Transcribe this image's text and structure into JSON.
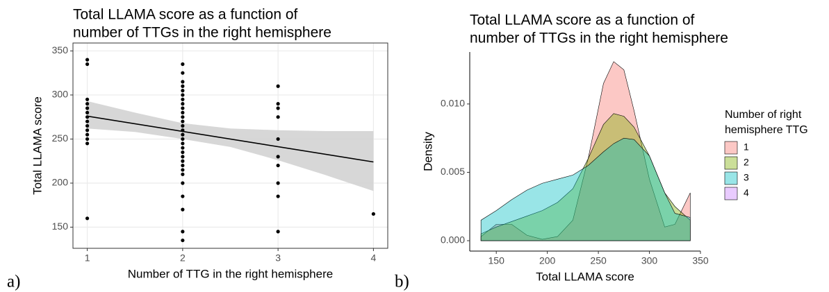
{
  "chart_data": [
    {
      "type": "scatter",
      "title": [
        "Total LLAMA score as a function of",
        "number of TTGs in the right hemisphere"
      ],
      "xlabel": "Number of TTG in the right hemisphere",
      "ylabel": "Total LLAMA score",
      "caption": "a)",
      "x": [
        1,
        1,
        1,
        1,
        1,
        1,
        1,
        1,
        1,
        1,
        1,
        1,
        1,
        1,
        2,
        2,
        2,
        2,
        2,
        2,
        2,
        2,
        2,
        2,
        2,
        2,
        2,
        2,
        2,
        2,
        2,
        2,
        2,
        2,
        2,
        2,
        2,
        2,
        2,
        2,
        2,
        2,
        2,
        3,
        3,
        3,
        3,
        3,
        3,
        3,
        3,
        3,
        3,
        4
      ],
      "y": [
        340,
        335,
        295,
        290,
        285,
        280,
        275,
        270,
        265,
        260,
        255,
        250,
        245,
        160,
        335,
        325,
        315,
        310,
        305,
        300,
        295,
        290,
        285,
        280,
        275,
        270,
        265,
        260,
        255,
        250,
        245,
        240,
        235,
        230,
        225,
        220,
        215,
        210,
        200,
        185,
        170,
        145,
        135,
        310,
        290,
        285,
        275,
        250,
        230,
        220,
        200,
        185,
        145,
        165
      ],
      "color": "#000000",
      "fit": {
        "x": [
          1,
          4
        ],
        "values": [
          276,
          224
        ],
        "color": "#000000"
      },
      "band": {
        "x": [
          1,
          1.5,
          2,
          2.5,
          3,
          3.5,
          4
        ],
        "lower": [
          262,
          258,
          250,
          241,
          226,
          209,
          191
        ],
        "upper": [
          293,
          280,
          268,
          262,
          260,
          259,
          259
        ],
        "color": "#d3d3d3"
      },
      "xlim": [
        0.85,
        4.15
      ],
      "ylim": [
        126,
        359
      ],
      "xticks": [
        1,
        2,
        3,
        4
      ],
      "yticks": [
        150,
        200,
        250,
        300,
        350
      ],
      "grid": true
    },
    {
      "type": "density",
      "title": [
        "Total LLAMA score as a function of",
        "number of TTGs in the right hemisphere"
      ],
      "xlabel": "Total LLAMA score",
      "ylabel": "Density",
      "caption": "b)",
      "legend_title": [
        "Number of right",
        "hemisphere TTG"
      ],
      "x": [
        135,
        150,
        165,
        180,
        195,
        210,
        225,
        240,
        255,
        265,
        275,
        285,
        300,
        315,
        325,
        340
      ],
      "series": [
        {
          "name": "1",
          "color": "#F8766D",
          "values": [
            0.0003,
            0.0012,
            0.0012,
            0.0004,
            0.0001,
            0.0003,
            0.0015,
            0.006,
            0.0115,
            0.0131,
            0.0125,
            0.0095,
            0.0045,
            0.001,
            0.0012,
            0.0035
          ]
        },
        {
          "name": "2",
          "color": "#7CAE00",
          "values": [
            0.0005,
            0.001,
            0.0014,
            0.0018,
            0.0022,
            0.0028,
            0.0038,
            0.006,
            0.0085,
            0.0093,
            0.0091,
            0.0083,
            0.0062,
            0.0035,
            0.0025,
            0.0015
          ]
        },
        {
          "name": "3",
          "color": "#00BFC4",
          "values": [
            0.0015,
            0.0022,
            0.003,
            0.0037,
            0.0042,
            0.0045,
            0.0048,
            0.0055,
            0.0065,
            0.0071,
            0.0075,
            0.0074,
            0.0062,
            0.0035,
            0.002,
            0.0017
          ]
        },
        {
          "name": "4",
          "color": "#C77CFF",
          "values": [
            null,
            null,
            null,
            null,
            null,
            null,
            null,
            null,
            null,
            null,
            null,
            null,
            null,
            null,
            null,
            null
          ]
        }
      ],
      "xlim": [
        124,
        350
      ],
      "ylim": [
        -0.00076,
        0.0138
      ],
      "xticks": [
        150,
        200,
        250,
        300,
        350
      ],
      "yticks": [
        {
          "value": 0,
          "label": "0.000"
        },
        {
          "value": 0.005,
          "label": "0.005"
        },
        {
          "value": 0.01,
          "label": "0.010"
        }
      ],
      "grid": false
    }
  ]
}
